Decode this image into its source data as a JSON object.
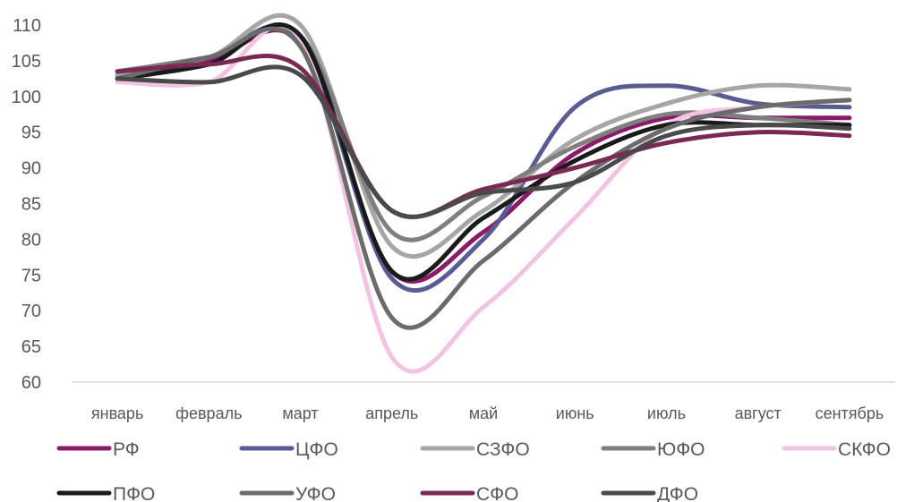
{
  "chart_data": {
    "type": "line",
    "title": "",
    "xlabel": "",
    "ylabel": "",
    "ylim": [
      60,
      110
    ],
    "yticks": [
      60,
      65,
      70,
      75,
      80,
      85,
      90,
      95,
      100,
      105,
      110
    ],
    "grid": false,
    "legend_position": "bottom",
    "smooth": true,
    "categories": [
      "январь",
      "февраль",
      "март",
      "апрель",
      "май",
      "июнь",
      "июль",
      "август",
      "сентябрь"
    ],
    "series": [
      {
        "name": "РФ",
        "color": "#8b1a6b",
        "values": [
          103,
          105,
          107.5,
          75.5,
          81,
          92,
          97,
          97,
          97
        ]
      },
      {
        "name": "ЦФО",
        "color": "#5b5b94",
        "values": [
          103.5,
          105.5,
          108,
          74.5,
          80,
          98.5,
          101.5,
          99,
          98.5
        ]
      },
      {
        "name": "СЗФО",
        "color": "#a6a6a6",
        "values": [
          103,
          105.5,
          110,
          79,
          84,
          94,
          99,
          101.5,
          101
        ]
      },
      {
        "name": "ЮФО",
        "color": "#7f7f7f",
        "values": [
          103.5,
          105.5,
          108.5,
          81,
          86,
          93,
          97.5,
          97,
          96
        ]
      },
      {
        "name": "СКФО",
        "color": "#f2c4e2",
        "values": [
          102,
          102,
          108,
          63.5,
          70.5,
          83,
          96,
          98.5,
          99.5
        ]
      },
      {
        "name": "ПФО",
        "color": "#1a1a1a",
        "values": [
          102.5,
          104.5,
          108.5,
          75.5,
          83,
          91,
          96,
          96,
          96
        ]
      },
      {
        "name": "УФО",
        "color": "#6b6b6b",
        "values": [
          102.5,
          105.5,
          107,
          69,
          77,
          88,
          95.5,
          98.5,
          99.5
        ]
      },
      {
        "name": "СФО",
        "color": "#7a2a52",
        "values": [
          103.5,
          104.5,
          104,
          84,
          87,
          90,
          93.5,
          95,
          94.5
        ]
      },
      {
        "name": "ДФО",
        "color": "#4a4a4a",
        "values": [
          102.5,
          102,
          103,
          84,
          86.5,
          88,
          94.5,
          96,
          95.5
        ]
      }
    ]
  }
}
